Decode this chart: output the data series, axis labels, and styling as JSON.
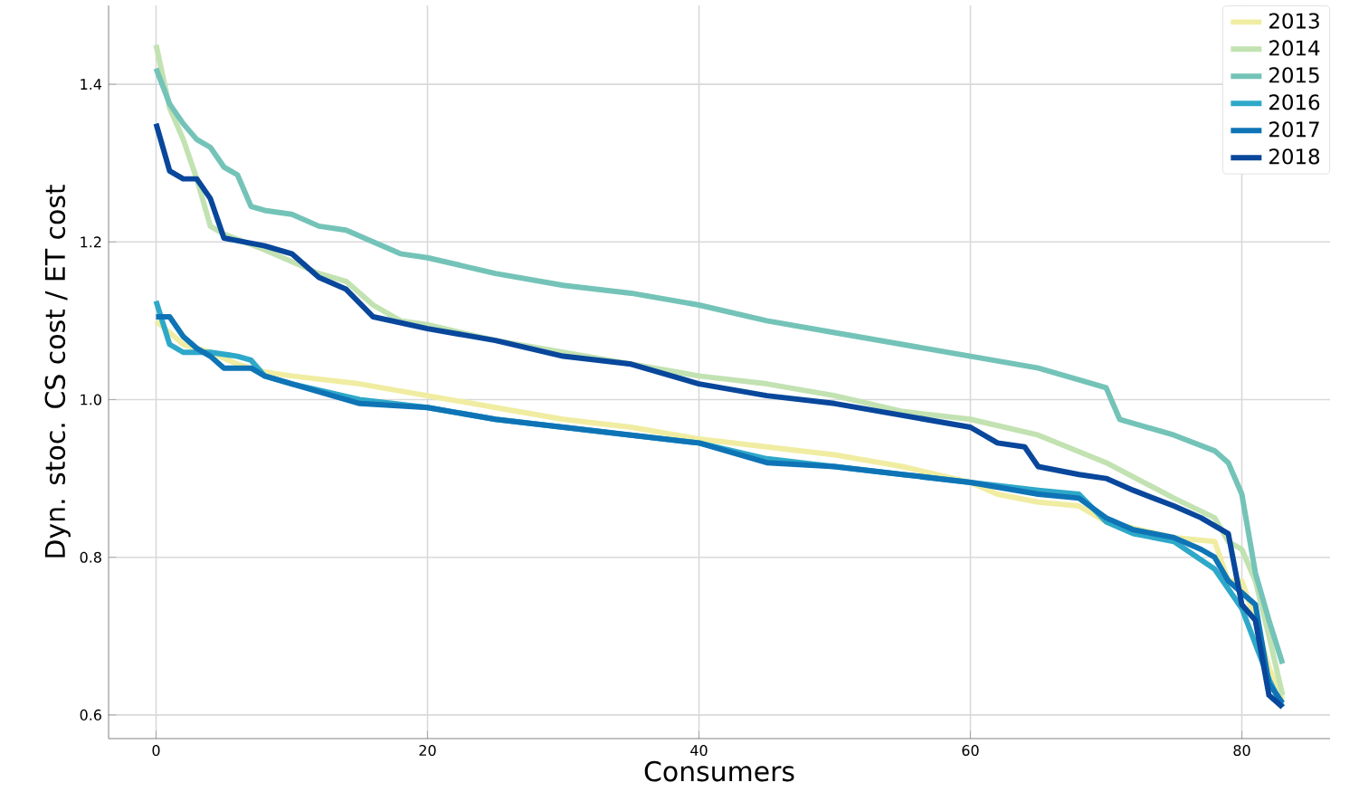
{
  "chart_data": {
    "type": "line",
    "xlabel": "Consumers",
    "ylabel": "Dyn. stoc. CS cost / ET cost",
    "xlim": [
      -3.5,
      86.5
    ],
    "ylim": [
      0.57,
      1.5
    ],
    "xticks": [
      0,
      20,
      40,
      60,
      80
    ],
    "yticks": [
      0.6,
      0.8,
      {
        "value": 1.0,
        "label": "1.0"
      },
      1.2,
      1.4
    ],
    "grid": true,
    "legend": "top right",
    "series": [
      {
        "name": "2013",
        "color": "#f0eda2",
        "x": [
          0,
          2,
          4,
          6,
          8,
          10,
          15,
          20,
          25,
          30,
          35,
          40,
          45,
          50,
          55,
          60,
          62,
          65,
          68,
          70,
          75,
          78,
          79,
          80,
          81,
          82,
          83
        ],
        "values": [
          1.1,
          1.07,
          1.06,
          1.045,
          1.035,
          1.03,
          1.02,
          1.005,
          0.99,
          0.975,
          0.965,
          0.95,
          0.94,
          0.93,
          0.915,
          0.895,
          0.88,
          0.87,
          0.865,
          0.845,
          0.825,
          0.82,
          0.77,
          0.77,
          0.72,
          0.66,
          0.62
        ]
      },
      {
        "name": "2014",
        "color": "#c2e2b2",
        "x": [
          0,
          1,
          2,
          3,
          4,
          5,
          8,
          10,
          12,
          14,
          16,
          18,
          20,
          25,
          30,
          35,
          40,
          45,
          50,
          55,
          60,
          65,
          70,
          75,
          78,
          79,
          80,
          81,
          82,
          83
        ],
        "values": [
          1.45,
          1.37,
          1.33,
          1.28,
          1.22,
          1.21,
          1.19,
          1.175,
          1.16,
          1.15,
          1.12,
          1.1,
          1.095,
          1.075,
          1.06,
          1.045,
          1.03,
          1.02,
          1.005,
          0.985,
          0.975,
          0.955,
          0.92,
          0.875,
          0.85,
          0.82,
          0.81,
          0.77,
          0.7,
          0.625
        ]
      },
      {
        "name": "2015",
        "color": "#74c3b8",
        "x": [
          0,
          1,
          2,
          3,
          4,
          5,
          6,
          7,
          8,
          10,
          12,
          14,
          16,
          18,
          20,
          25,
          30,
          35,
          40,
          45,
          50,
          55,
          60,
          65,
          68,
          70,
          71,
          75,
          78,
          79,
          80,
          81,
          82,
          83
        ],
        "values": [
          1.42,
          1.375,
          1.35,
          1.33,
          1.32,
          1.295,
          1.285,
          1.245,
          1.24,
          1.235,
          1.22,
          1.215,
          1.2,
          1.185,
          1.18,
          1.16,
          1.145,
          1.135,
          1.12,
          1.1,
          1.085,
          1.07,
          1.055,
          1.04,
          1.025,
          1.015,
          0.975,
          0.955,
          0.935,
          0.92,
          0.88,
          0.78,
          0.72,
          0.665
        ]
      },
      {
        "name": "2016",
        "color": "#2ea8c9",
        "x": [
          0,
          1,
          2,
          4,
          6,
          7,
          8,
          10,
          15,
          20,
          25,
          30,
          35,
          40,
          45,
          50,
          55,
          60,
          65,
          68,
          70,
          72,
          75,
          78,
          80,
          81,
          82,
          83
        ],
        "values": [
          1.125,
          1.07,
          1.06,
          1.06,
          1.055,
          1.05,
          1.03,
          1.02,
          1.0,
          0.99,
          0.975,
          0.965,
          0.955,
          0.945,
          0.925,
          0.915,
          0.905,
          0.895,
          0.885,
          0.88,
          0.845,
          0.83,
          0.82,
          0.785,
          0.735,
          0.69,
          0.645,
          0.61
        ]
      },
      {
        "name": "2017",
        "color": "#0e74b6",
        "x": [
          0,
          1,
          2,
          3,
          4,
          5,
          7,
          8,
          10,
          15,
          20,
          25,
          30,
          35,
          40,
          45,
          50,
          55,
          60,
          65,
          68,
          70,
          72,
          75,
          77,
          78,
          79,
          80,
          81,
          82,
          83
        ],
        "values": [
          1.105,
          1.105,
          1.08,
          1.065,
          1.055,
          1.04,
          1.04,
          1.03,
          1.02,
          0.995,
          0.99,
          0.975,
          0.965,
          0.955,
          0.945,
          0.92,
          0.915,
          0.905,
          0.895,
          0.88,
          0.875,
          0.85,
          0.835,
          0.825,
          0.81,
          0.8,
          0.77,
          0.755,
          0.74,
          0.64,
          0.615
        ]
      },
      {
        "name": "2018",
        "color": "#08479b",
        "x": [
          0,
          1,
          2,
          3,
          4,
          5,
          8,
          10,
          12,
          14,
          16,
          20,
          25,
          30,
          35,
          40,
          45,
          50,
          55,
          60,
          62,
          64,
          65,
          68,
          70,
          72,
          75,
          77,
          79,
          80,
          81,
          82,
          83
        ],
        "values": [
          1.35,
          1.29,
          1.28,
          1.28,
          1.255,
          1.205,
          1.195,
          1.185,
          1.155,
          1.14,
          1.105,
          1.09,
          1.075,
          1.055,
          1.045,
          1.02,
          1.005,
          0.995,
          0.98,
          0.965,
          0.945,
          0.94,
          0.915,
          0.905,
          0.9,
          0.885,
          0.865,
          0.85,
          0.83,
          0.74,
          0.72,
          0.625,
          0.61
        ]
      }
    ]
  }
}
